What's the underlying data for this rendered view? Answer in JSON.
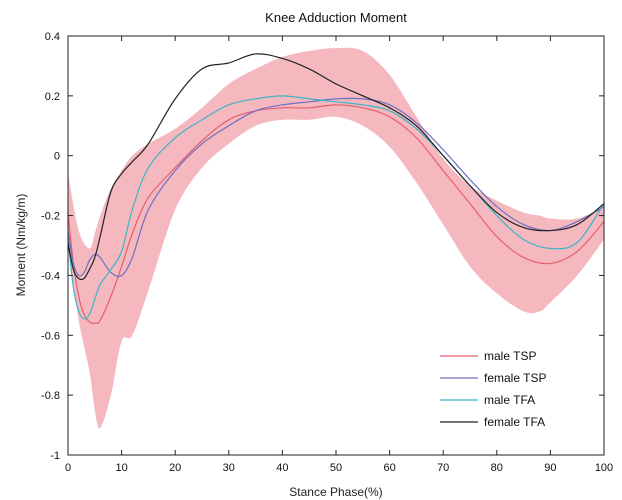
{
  "chart_data": {
    "type": "line",
    "title": "Knee Adduction Moment",
    "xlabel": "Stance Phase(%)",
    "ylabel": "Moment (Nm/kg/m)",
    "xlim": [
      0,
      100
    ],
    "ylim": [
      -1,
      0.4
    ],
    "xticks": [
      0,
      10,
      20,
      30,
      40,
      50,
      60,
      70,
      80,
      90,
      100
    ],
    "yticks": [
      -1,
      -0.8,
      -0.6,
      -0.4,
      -0.2,
      0,
      0.2,
      0.4
    ],
    "xtick_labels": [
      "0",
      "10",
      "20",
      "30",
      "40",
      "50",
      "60",
      "70",
      "80",
      "90",
      "100"
    ],
    "ytick_labels": [
      "-1",
      "-0.8",
      "-0.6",
      "-0.4",
      "-0.2",
      "0",
      "0.2",
      "0.4"
    ],
    "grid": false,
    "legend_position": "bottom-right",
    "band": {
      "color": "#f5b8bf",
      "x": [
        0,
        2,
        4,
        5,
        6,
        8,
        10,
        12,
        15,
        20,
        25,
        30,
        35,
        40,
        45,
        50,
        55,
        60,
        65,
        70,
        75,
        80,
        85,
        88,
        90,
        95,
        100
      ],
      "upper": [
        -0.06,
        -0.25,
        -0.31,
        -0.26,
        -0.2,
        -0.11,
        -0.05,
        0.0,
        0.04,
        0.09,
        0.16,
        0.24,
        0.29,
        0.33,
        0.35,
        0.36,
        0.35,
        0.27,
        0.13,
        -0.01,
        -0.1,
        -0.15,
        -0.19,
        -0.2,
        -0.21,
        -0.21,
        -0.17
      ],
      "lower": [
        -0.3,
        -0.55,
        -0.72,
        -0.85,
        -0.91,
        -0.8,
        -0.62,
        -0.6,
        -0.45,
        -0.18,
        -0.04,
        0.04,
        0.1,
        0.12,
        0.12,
        0.13,
        0.1,
        0.03,
        -0.09,
        -0.23,
        -0.37,
        -0.46,
        -0.52,
        -0.52,
        -0.49,
        -0.4,
        -0.28
      ]
    },
    "x": [
      0,
      1,
      2,
      3,
      4,
      5,
      6,
      8,
      10,
      12,
      15,
      20,
      25,
      30,
      35,
      40,
      45,
      50,
      55,
      60,
      65,
      70,
      75,
      80,
      85,
      90,
      95,
      100
    ],
    "series": [
      {
        "name": "male TSP",
        "color": "#e4606d",
        "values": [
          -0.19,
          -0.36,
          -0.47,
          -0.53,
          -0.555,
          -0.56,
          -0.55,
          -0.47,
          -0.37,
          -0.26,
          -0.14,
          -0.04,
          0.05,
          0.12,
          0.15,
          0.16,
          0.16,
          0.17,
          0.16,
          0.13,
          0.06,
          -0.05,
          -0.16,
          -0.27,
          -0.34,
          -0.36,
          -0.32,
          -0.22
        ]
      },
      {
        "name": "female TSP",
        "color": "#6d6fc2",
        "values": [
          -0.25,
          -0.36,
          -0.4,
          -0.39,
          -0.35,
          -0.33,
          -0.34,
          -0.39,
          -0.4,
          -0.34,
          -0.18,
          -0.05,
          0.04,
          0.1,
          0.15,
          0.17,
          0.18,
          0.19,
          0.19,
          0.17,
          0.11,
          0.02,
          -0.08,
          -0.17,
          -0.23,
          -0.25,
          -0.22,
          -0.17
        ]
      },
      {
        "name": "male TFA",
        "color": "#3cb5c9",
        "values": [
          -0.28,
          -0.44,
          -0.52,
          -0.545,
          -0.53,
          -0.48,
          -0.43,
          -0.38,
          -0.32,
          -0.18,
          -0.04,
          0.06,
          0.12,
          0.17,
          0.19,
          0.2,
          0.19,
          0.18,
          0.17,
          0.15,
          0.09,
          0.0,
          -0.1,
          -0.2,
          -0.28,
          -0.31,
          -0.29,
          -0.16
        ]
      },
      {
        "name": "female TFA",
        "color": "#222222",
        "values": [
          -0.29,
          -0.38,
          -0.41,
          -0.41,
          -0.38,
          -0.34,
          -0.27,
          -0.12,
          -0.06,
          -0.02,
          0.04,
          0.19,
          0.29,
          0.31,
          0.34,
          0.325,
          0.29,
          0.24,
          0.2,
          0.16,
          0.1,
          0.0,
          -0.1,
          -0.19,
          -0.24,
          -0.25,
          -0.23,
          -0.16
        ]
      }
    ]
  }
}
